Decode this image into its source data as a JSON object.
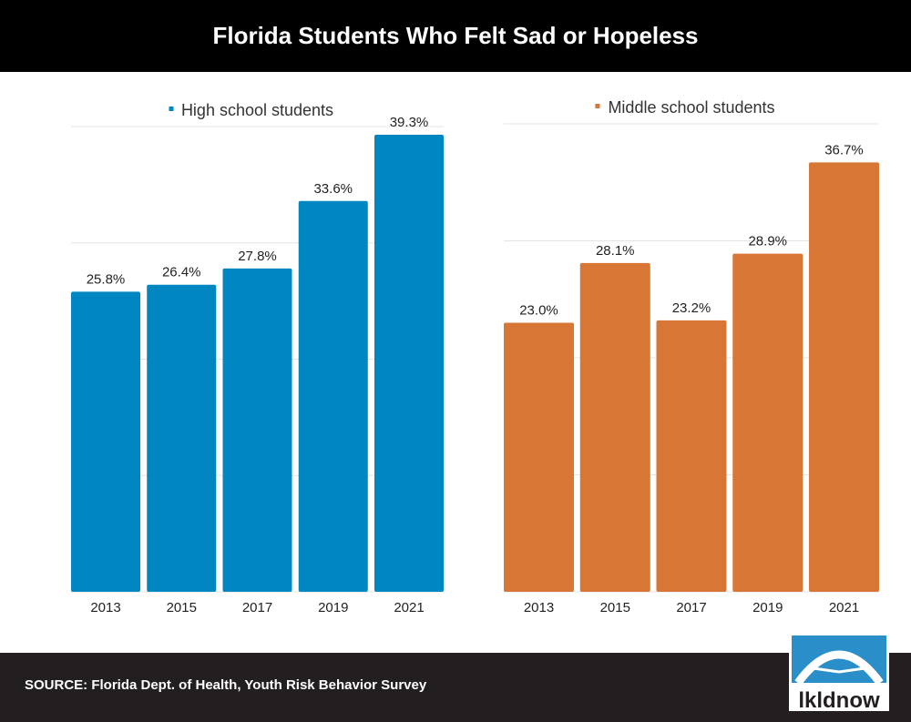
{
  "title": "Florida Students Who Felt Sad or Hopeless",
  "source": "SOURCE: Florida Dept. of Health, Youth Risk Behavior Survey",
  "logo_text": "lkldnow",
  "chart_data": [
    {
      "type": "bar",
      "categories": [
        "2013",
        "2015",
        "2017",
        "2019",
        "2021"
      ],
      "series": [
        {
          "name": "High school students",
          "values": [
            25.8,
            26.4,
            27.8,
            33.6,
            39.3
          ]
        }
      ],
      "labels": [
        "25.8%",
        "26.4%",
        "27.8%",
        "33.6%",
        "39.3%"
      ],
      "ylim": [
        0,
        40
      ],
      "grid": true,
      "legend": "top",
      "color": "#0086c0"
    },
    {
      "type": "bar",
      "categories": [
        "2013",
        "2015",
        "2017",
        "2019",
        "2021"
      ],
      "series": [
        {
          "name": "Middle school students",
          "values": [
            23.0,
            28.1,
            23.2,
            28.9,
            36.7
          ]
        }
      ],
      "labels": [
        "23.0%",
        "28.1%",
        "23.2%",
        "28.9%",
        "36.7%"
      ],
      "ylim": [
        0,
        40
      ],
      "grid": true,
      "legend": "top",
      "color": "#d87635"
    }
  ]
}
